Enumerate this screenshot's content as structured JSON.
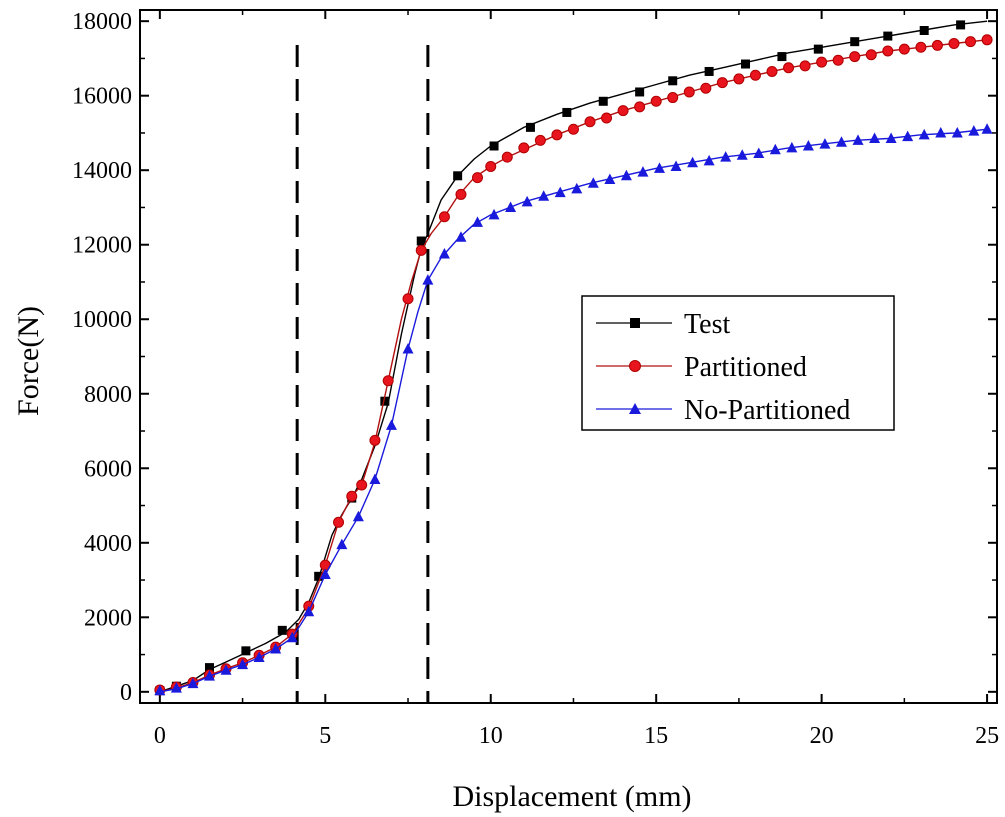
{
  "chart_data": {
    "type": "line",
    "xlabel": "Displacement (mm)",
    "ylabel": "Force(N)",
    "xlim": [
      -0.6,
      25.3
    ],
    "ylim": [
      -300,
      18300
    ],
    "xticks": [
      0,
      5,
      10,
      15,
      20,
      25
    ],
    "yticks": [
      0,
      2000,
      4000,
      6000,
      8000,
      10000,
      12000,
      14000,
      16000,
      18000
    ],
    "xtick_labels": [
      "0",
      "5",
      "10",
      "15",
      "20",
      "25"
    ],
    "ytick_labels": [
      "0",
      "2000",
      "4000",
      "6000",
      "8000",
      "10000",
      "12000",
      "14000",
      "16000",
      "18000"
    ],
    "grid": false,
    "legend_position": "center-right",
    "reference_lines_x": [
      4.15,
      8.1
    ],
    "series": [
      {
        "name": "Test",
        "color": "#000000",
        "marker": "square",
        "line": [
          [
            0,
            0
          ],
          [
            0.5,
            150
          ],
          [
            1,
            300
          ],
          [
            1.5,
            600
          ],
          [
            2,
            800
          ],
          [
            2.6,
            1050
          ],
          [
            3.2,
            1300
          ],
          [
            3.8,
            1600
          ],
          [
            4.2,
            1950
          ],
          [
            4.5,
            2400
          ],
          [
            4.8,
            3050
          ],
          [
            5.2,
            4200
          ],
          [
            5.5,
            4750
          ],
          [
            5.8,
            5200
          ],
          [
            6.1,
            5700
          ],
          [
            6.5,
            6600
          ],
          [
            6.9,
            7750
          ],
          [
            7.3,
            9600
          ],
          [
            7.7,
            11200
          ],
          [
            7.9,
            11900
          ],
          [
            8.1,
            12300
          ],
          [
            8.5,
            13200
          ],
          [
            9,
            13850
          ],
          [
            9.5,
            14300
          ],
          [
            10,
            14650
          ],
          [
            11,
            15150
          ],
          [
            12,
            15500
          ],
          [
            13,
            15800
          ],
          [
            14,
            16050
          ],
          [
            15,
            16300
          ],
          [
            16,
            16550
          ],
          [
            17,
            16750
          ],
          [
            18,
            16950
          ],
          [
            19,
            17150
          ],
          [
            20,
            17300
          ],
          [
            21,
            17450
          ],
          [
            22,
            17600
          ],
          [
            23,
            17750
          ],
          [
            24,
            17900
          ],
          [
            25,
            18000
          ]
        ],
        "markers": [
          [
            0,
            30
          ],
          [
            0.5,
            150
          ],
          [
            1.5,
            650
          ],
          [
            2.6,
            1100
          ],
          [
            3.7,
            1650
          ],
          [
            4.8,
            3100
          ],
          [
            5.8,
            5200
          ],
          [
            6.8,
            7800
          ],
          [
            7.9,
            12100
          ],
          [
            9,
            13850
          ],
          [
            10.1,
            14650
          ],
          [
            11.2,
            15150
          ],
          [
            12.3,
            15550
          ],
          [
            13.4,
            15850
          ],
          [
            14.5,
            16100
          ],
          [
            15.5,
            16400
          ],
          [
            16.6,
            16650
          ],
          [
            17.7,
            16850
          ],
          [
            18.8,
            17050
          ],
          [
            19.9,
            17250
          ],
          [
            21,
            17450
          ],
          [
            22,
            17600
          ],
          [
            23.1,
            17750
          ],
          [
            24.2,
            17900
          ]
        ]
      },
      {
        "name": "Partitioned",
        "color": "#e8141e",
        "marker": "circle",
        "line": [
          [
            0,
            0
          ],
          [
            0.5,
            100
          ],
          [
            1,
            250
          ],
          [
            1.5,
            450
          ],
          [
            2,
            620
          ],
          [
            2.5,
            780
          ],
          [
            3,
            980
          ],
          [
            3.5,
            1200
          ],
          [
            4,
            1550
          ],
          [
            4.5,
            2250
          ],
          [
            5,
            3400
          ],
          [
            5.4,
            4550
          ],
          [
            5.8,
            5250
          ],
          [
            6.1,
            5550
          ],
          [
            6.5,
            6700
          ],
          [
            6.9,
            8350
          ],
          [
            7.3,
            10000
          ],
          [
            7.6,
            11000
          ],
          [
            7.9,
            11850
          ],
          [
            8.2,
            12300
          ],
          [
            8.6,
            12750
          ],
          [
            9,
            13300
          ],
          [
            9.5,
            13800
          ],
          [
            10,
            14100
          ],
          [
            10.5,
            14350
          ],
          [
            11,
            14550
          ],
          [
            12,
            14950
          ],
          [
            13,
            15300
          ],
          [
            14,
            15600
          ],
          [
            15,
            15850
          ],
          [
            16,
            16100
          ],
          [
            17,
            16350
          ],
          [
            18,
            16550
          ],
          [
            19,
            16750
          ],
          [
            20,
            16900
          ],
          [
            21,
            17050
          ],
          [
            22,
            17200
          ],
          [
            23,
            17300
          ],
          [
            24,
            17400
          ],
          [
            25,
            17500
          ]
        ],
        "markers": [
          [
            0,
            50
          ],
          [
            0.5,
            130
          ],
          [
            1,
            250
          ],
          [
            1.5,
            450
          ],
          [
            2,
            620
          ],
          [
            2.5,
            780
          ],
          [
            3,
            980
          ],
          [
            3.5,
            1200
          ],
          [
            4,
            1550
          ],
          [
            4.5,
            2300
          ],
          [
            5,
            3400
          ],
          [
            5.4,
            4550
          ],
          [
            5.8,
            5250
          ],
          [
            6.1,
            5550
          ],
          [
            6.5,
            6750
          ],
          [
            6.9,
            8350
          ],
          [
            7.5,
            10550
          ],
          [
            7.9,
            11850
          ],
          [
            8.6,
            12750
          ],
          [
            9.1,
            13350
          ],
          [
            9.6,
            13800
          ],
          [
            10,
            14100
          ],
          [
            10.5,
            14350
          ],
          [
            11,
            14600
          ],
          [
            11.5,
            14800
          ],
          [
            12,
            14950
          ],
          [
            12.5,
            15100
          ],
          [
            13,
            15300
          ],
          [
            13.5,
            15400
          ],
          [
            14,
            15600
          ],
          [
            14.5,
            15700
          ],
          [
            15,
            15850
          ],
          [
            15.5,
            15950
          ],
          [
            16,
            16100
          ],
          [
            16.5,
            16200
          ],
          [
            17,
            16350
          ],
          [
            17.5,
            16450
          ],
          [
            18,
            16550
          ],
          [
            18.5,
            16650
          ],
          [
            19,
            16750
          ],
          [
            19.5,
            16800
          ],
          [
            20,
            16900
          ],
          [
            20.5,
            16950
          ],
          [
            21,
            17050
          ],
          [
            21.5,
            17100
          ],
          [
            22,
            17200
          ],
          [
            22.5,
            17250
          ],
          [
            23,
            17300
          ],
          [
            23.5,
            17350
          ],
          [
            24,
            17400
          ],
          [
            24.5,
            17450
          ],
          [
            25,
            17500
          ]
        ]
      },
      {
        "name": "No-Partitioned",
        "color": "#1a1adc",
        "marker": "triangle",
        "line": [
          [
            0,
            0
          ],
          [
            0.5,
            80
          ],
          [
            1,
            220
          ],
          [
            1.5,
            420
          ],
          [
            2,
            580
          ],
          [
            2.5,
            730
          ],
          [
            3,
            920
          ],
          [
            3.5,
            1150
          ],
          [
            4,
            1450
          ],
          [
            4.5,
            2150
          ],
          [
            5,
            3150
          ],
          [
            5.5,
            3950
          ],
          [
            6,
            4700
          ],
          [
            6.5,
            5700
          ],
          [
            7,
            7150
          ],
          [
            7.5,
            9200
          ],
          [
            7.8,
            10200
          ],
          [
            8.1,
            11050
          ],
          [
            8.5,
            11650
          ],
          [
            9,
            12150
          ],
          [
            9.5,
            12550
          ],
          [
            10,
            12800
          ],
          [
            11,
            13150
          ],
          [
            12,
            13400
          ],
          [
            13,
            13650
          ],
          [
            14,
            13850
          ],
          [
            15,
            14050
          ],
          [
            16,
            14200
          ],
          [
            17,
            14350
          ],
          [
            18,
            14450
          ],
          [
            19,
            14600
          ],
          [
            20,
            14700
          ],
          [
            21,
            14800
          ],
          [
            22,
            14850
          ],
          [
            23,
            14950
          ],
          [
            24,
            15000
          ],
          [
            25,
            15100
          ]
        ],
        "markers": [
          [
            0,
            30
          ],
          [
            0.5,
            100
          ],
          [
            1,
            220
          ],
          [
            1.5,
            420
          ],
          [
            2,
            580
          ],
          [
            2.5,
            730
          ],
          [
            3,
            920
          ],
          [
            3.5,
            1150
          ],
          [
            4,
            1450
          ],
          [
            4.5,
            2150
          ],
          [
            5,
            3150
          ],
          [
            5.5,
            3950
          ],
          [
            6,
            4700
          ],
          [
            6.5,
            5700
          ],
          [
            7,
            7150
          ],
          [
            7.5,
            9200
          ],
          [
            8.1,
            11050
          ],
          [
            8.6,
            11750
          ],
          [
            9.1,
            12200
          ],
          [
            9.6,
            12600
          ],
          [
            10.1,
            12800
          ],
          [
            10.6,
            13000
          ],
          [
            11.1,
            13150
          ],
          [
            11.6,
            13300
          ],
          [
            12.1,
            13400
          ],
          [
            12.6,
            13500
          ],
          [
            13.1,
            13650
          ],
          [
            13.6,
            13750
          ],
          [
            14.1,
            13850
          ],
          [
            14.6,
            13950
          ],
          [
            15.1,
            14050
          ],
          [
            15.6,
            14100
          ],
          [
            16.1,
            14200
          ],
          [
            16.6,
            14250
          ],
          [
            17.1,
            14350
          ],
          [
            17.6,
            14400
          ],
          [
            18.1,
            14450
          ],
          [
            18.6,
            14550
          ],
          [
            19.1,
            14600
          ],
          [
            19.6,
            14650
          ],
          [
            20.1,
            14700
          ],
          [
            20.6,
            14750
          ],
          [
            21.1,
            14800
          ],
          [
            21.6,
            14850
          ],
          [
            22.1,
            14850
          ],
          [
            22.6,
            14900
          ],
          [
            23.1,
            14950
          ],
          [
            23.6,
            15000
          ],
          [
            24.1,
            15000
          ],
          [
            24.6,
            15050
          ],
          [
            25,
            15100
          ]
        ]
      }
    ]
  }
}
